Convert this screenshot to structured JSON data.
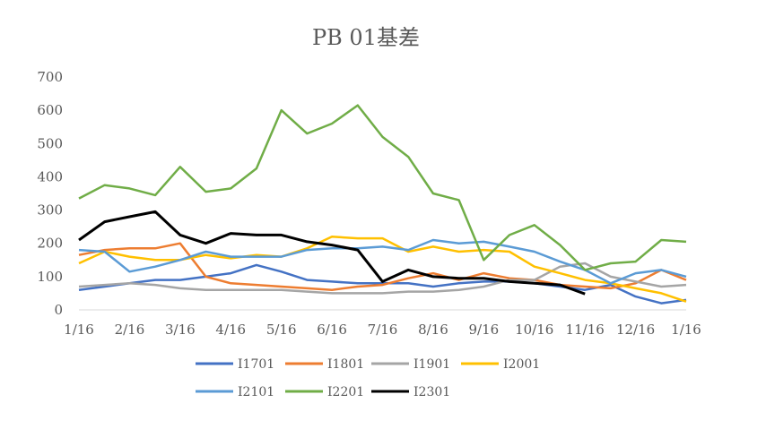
{
  "chart_data": {
    "type": "line",
    "title": "PB 01基差",
    "xlabel": "",
    "ylabel": "",
    "ylim": [
      0,
      700
    ],
    "yticks": [
      "0",
      "100",
      "200",
      "300",
      "400",
      "500",
      "600",
      "700"
    ],
    "xticks": [
      "1/16",
      "2/16",
      "3/16",
      "4/16",
      "5/16",
      "6/16",
      "7/16",
      "8/16",
      "9/16",
      "10/16",
      "11/16",
      "12/16",
      "1/16"
    ],
    "grid": false,
    "legend_position": "bottom",
    "x": [
      "1/16",
      "2/1",
      "2/16",
      "3/1",
      "3/16",
      "4/1",
      "4/16",
      "5/1",
      "5/16",
      "6/1",
      "6/16",
      "7/1",
      "7/16",
      "8/1",
      "8/16",
      "9/1",
      "9/16",
      "10/1",
      "10/16",
      "11/1",
      "11/16",
      "12/1",
      "12/16",
      "1/1",
      "1/16"
    ],
    "series": [
      {
        "name": "I1701",
        "color": "#4472C4",
        "values": [
          60,
          70,
          80,
          90,
          90,
          100,
          110,
          135,
          115,
          90,
          85,
          80,
          80,
          80,
          70,
          80,
          85,
          85,
          80,
          70,
          60,
          75,
          40,
          20,
          30
        ]
      },
      {
        "name": "I1801",
        "color": "#ED7D31",
        "values": [
          165,
          180,
          185,
          185,
          200,
          100,
          80,
          75,
          70,
          65,
          60,
          70,
          75,
          95,
          110,
          90,
          110,
          95,
          90,
          75,
          70,
          65,
          80,
          120,
          90
        ]
      },
      {
        "name": "I1901",
        "color": "#A5A5A5",
        "values": [
          70,
          75,
          80,
          75,
          65,
          60,
          60,
          60,
          60,
          55,
          50,
          50,
          50,
          55,
          55,
          60,
          70,
          90,
          90,
          130,
          140,
          100,
          85,
          70,
          75
        ]
      },
      {
        "name": "I2001",
        "color": "#FFC000",
        "values": [
          140,
          175,
          160,
          150,
          150,
          165,
          155,
          165,
          160,
          185,
          220,
          215,
          215,
          175,
          190,
          175,
          180,
          175,
          130,
          110,
          90,
          80,
          65,
          50,
          25
        ]
      },
      {
        "name": "I2101",
        "color": "#5B9BD5",
        "values": [
          180,
          175,
          115,
          130,
          150,
          175,
          160,
          160,
          160,
          180,
          185,
          185,
          190,
          180,
          210,
          200,
          205,
          190,
          175,
          145,
          120,
          80,
          110,
          120,
          100
        ]
      },
      {
        "name": "I2201",
        "color": "#70AD47",
        "values": [
          335,
          375,
          365,
          345,
          430,
          355,
          365,
          425,
          600,
          530,
          560,
          615,
          520,
          460,
          350,
          330,
          150,
          225,
          255,
          195,
          120,
          140,
          145,
          210,
          205
        ]
      },
      {
        "name": "I2301",
        "color": "#000000",
        "values": [
          210,
          265,
          280,
          295,
          225,
          200,
          230,
          225,
          225,
          205,
          195,
          180,
          85,
          120,
          100,
          95,
          95,
          85,
          80,
          75,
          48,
          null,
          null,
          null,
          null
        ]
      }
    ]
  }
}
